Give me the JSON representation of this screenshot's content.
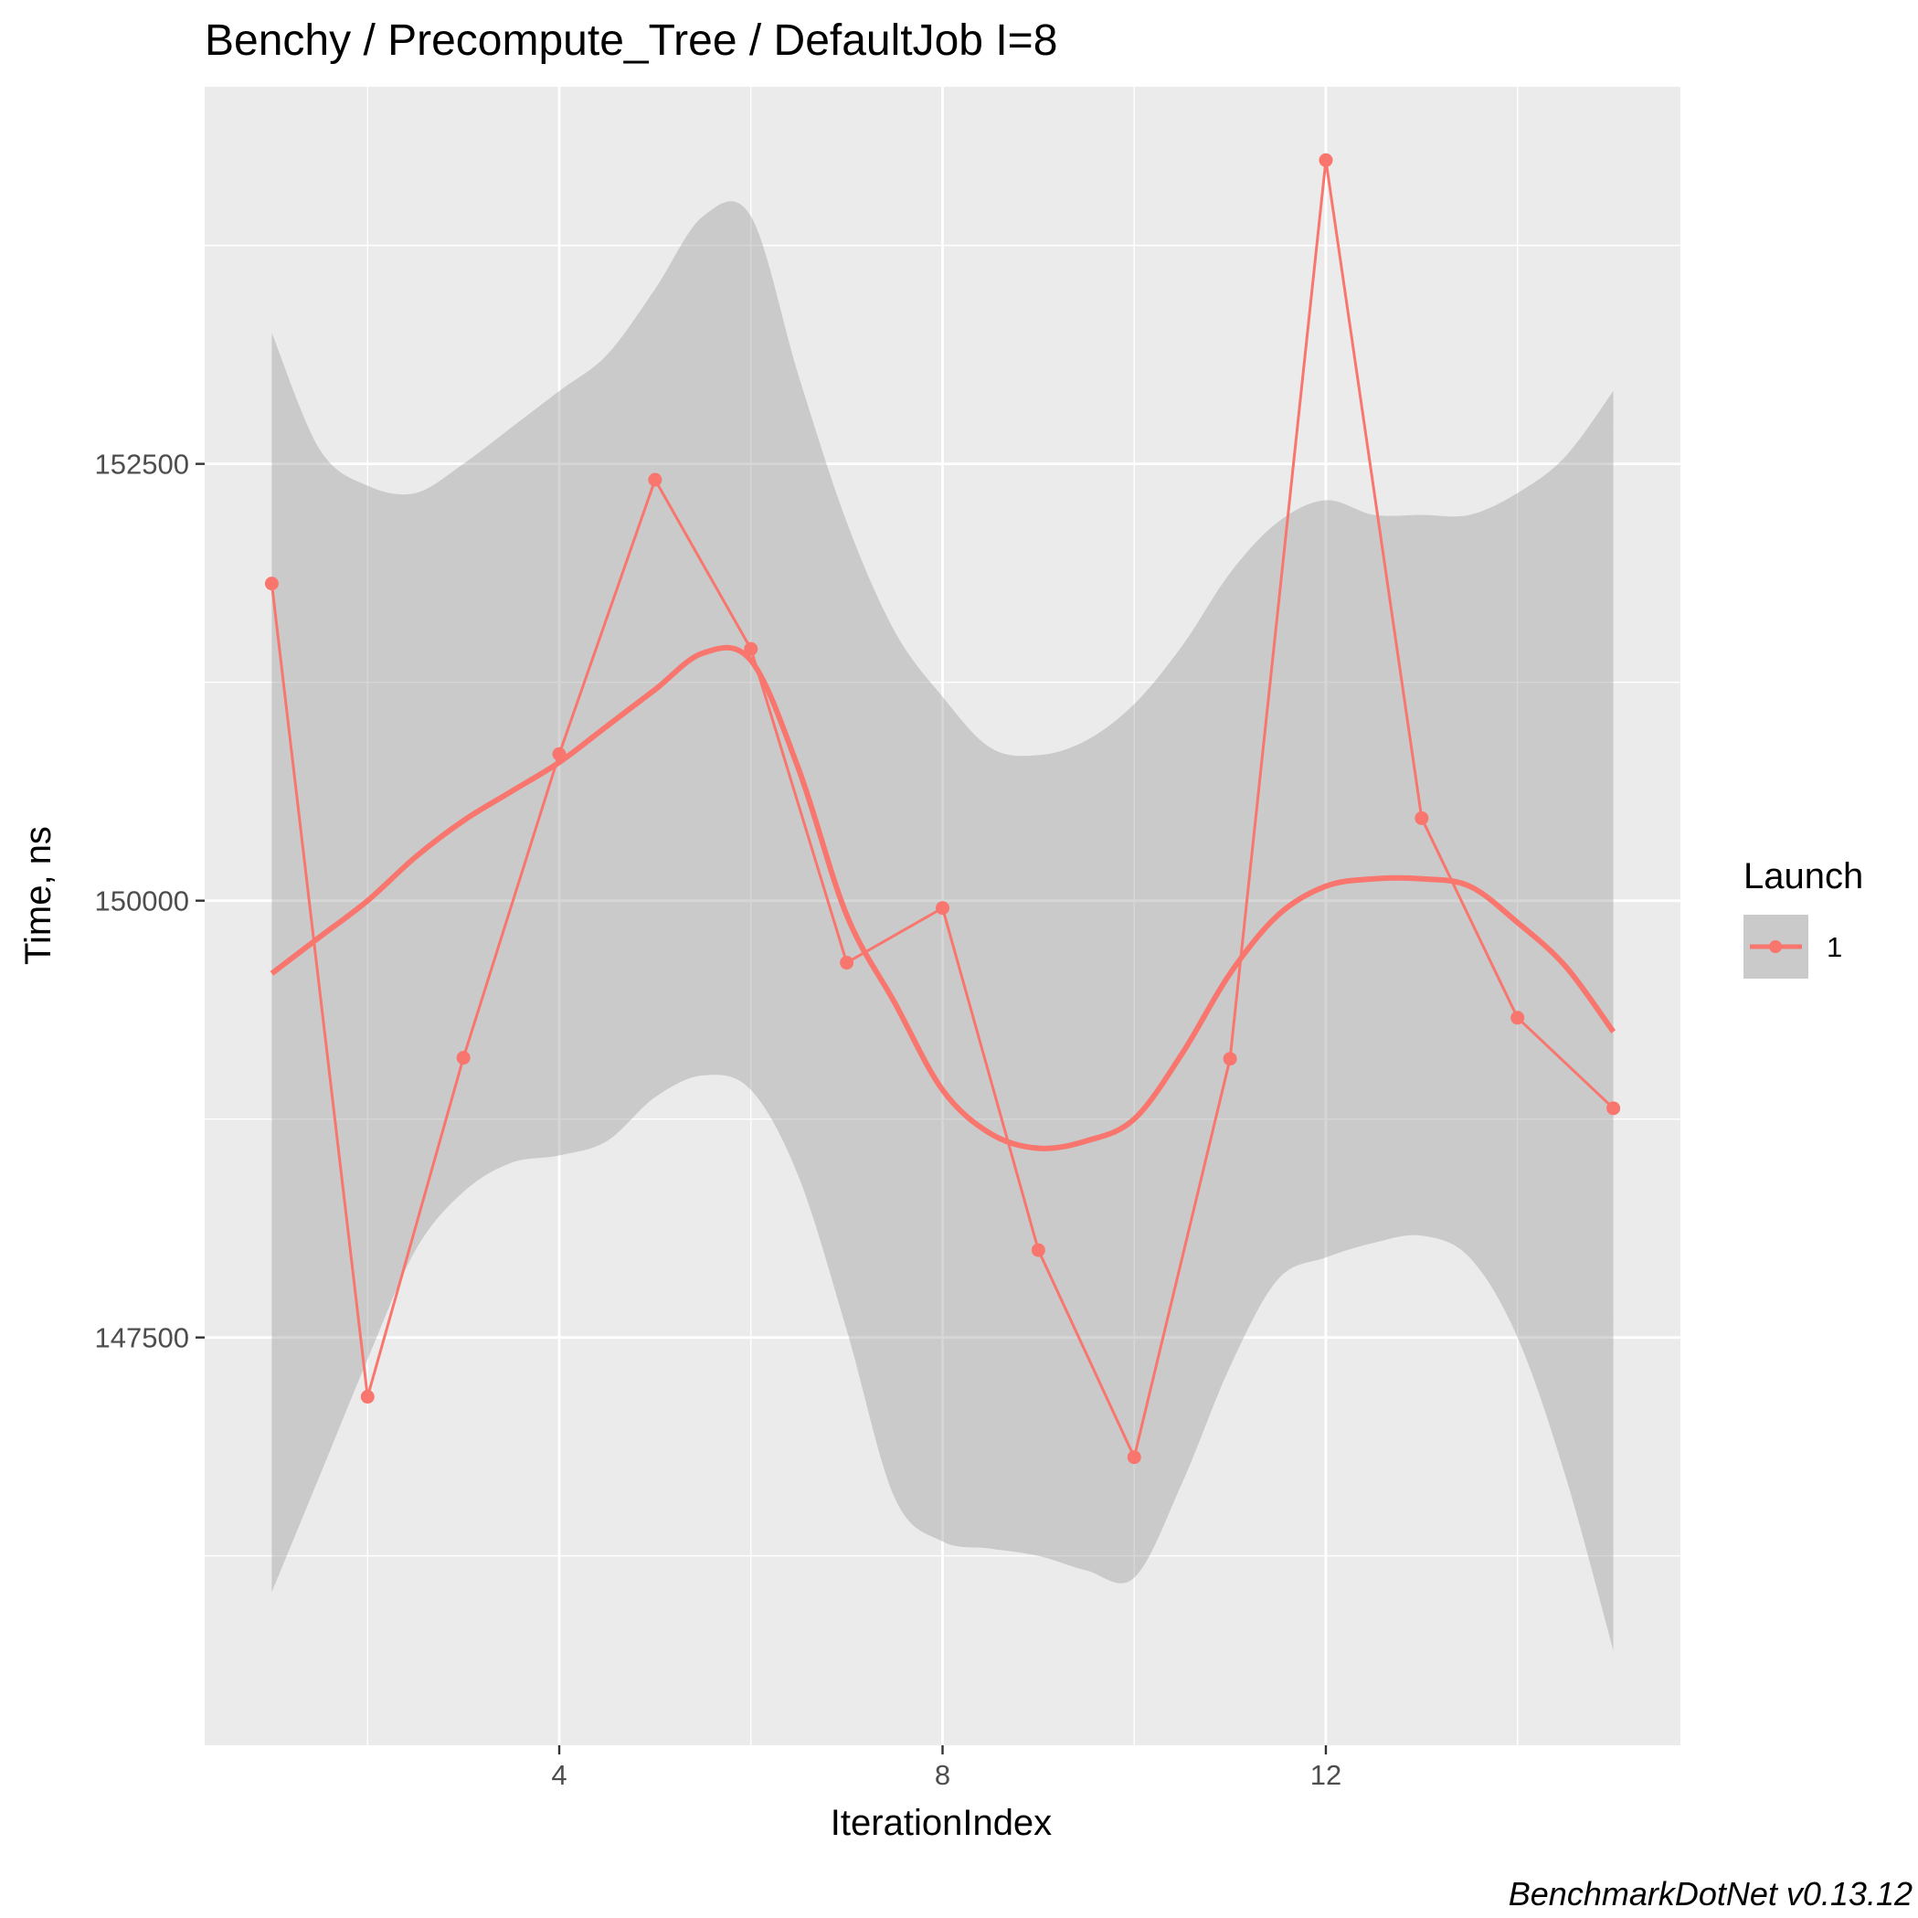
{
  "chart_data": {
    "type": "line",
    "title": "Benchy / Precompute_Tree / DefaultJob I=8",
    "xlabel": "IterationIndex",
    "ylabel": "Time, ns",
    "caption": "BenchmarkDotNet v0.13.12",
    "xlim": [
      0.3,
      15.7
    ],
    "ylim": [
      145166,
      154658
    ],
    "x_ticks": [
      4,
      8,
      12
    ],
    "x_tick_labels": [
      "4",
      "8",
      "12"
    ],
    "y_ticks": [
      147500,
      150000,
      152500
    ],
    "y_tick_labels": [
      "147500",
      "150000",
      "152500"
    ],
    "grid": true,
    "legend": {
      "title": "Launch",
      "position": "right",
      "entries": [
        "1"
      ]
    },
    "series": [
      {
        "name": "1",
        "color": "#F8766D",
        "x": [
          1,
          2,
          3,
          4,
          5,
          6,
          7,
          8,
          9,
          10,
          11,
          12,
          13,
          14,
          15
        ],
        "values": [
          151815,
          147161,
          149101,
          150839,
          152409,
          151441,
          149645,
          149958,
          148000,
          146815,
          149095,
          154238,
          150472,
          149330,
          148812
        ]
      }
    ],
    "smooth": {
      "color": "#F8766D",
      "band_color": "#999999",
      "x": [
        1,
        1.5,
        2,
        2.5,
        3,
        3.5,
        4,
        4.5,
        5,
        5.5,
        6,
        6.5,
        7,
        7.5,
        8,
        8.5,
        9,
        9.5,
        10,
        10.5,
        11,
        11.5,
        12,
        12.5,
        13,
        13.5,
        14,
        14.5,
        15
      ],
      "fit": [
        149583,
        149792,
        150000,
        150250,
        150458,
        150625,
        150792,
        151000,
        151208,
        151417,
        151375,
        150750,
        149917,
        149417,
        148917,
        148667,
        148583,
        148625,
        148750,
        149125,
        149583,
        149917,
        150083,
        150125,
        150125,
        150083,
        149875,
        149625,
        149250
      ],
      "lower": [
        146042,
        146708,
        147375,
        148000,
        148333,
        148500,
        148542,
        148625,
        148875,
        149000,
        148917,
        148417,
        147542,
        146583,
        146333,
        146292,
        146250,
        146167,
        146125,
        146667,
        147333,
        147833,
        147958,
        148042,
        148083,
        147958,
        147500,
        146708,
        145708
      ],
      "upper": [
        153250,
        152583,
        152375,
        152333,
        152500,
        152708,
        152917,
        153125,
        153500,
        153917,
        153917,
        153000,
        152167,
        151542,
        151167,
        150875,
        150833,
        150917,
        151125,
        151458,
        151875,
        152167,
        152292,
        152208,
        152208,
        152208,
        152333,
        152542,
        152917
      ]
    }
  }
}
